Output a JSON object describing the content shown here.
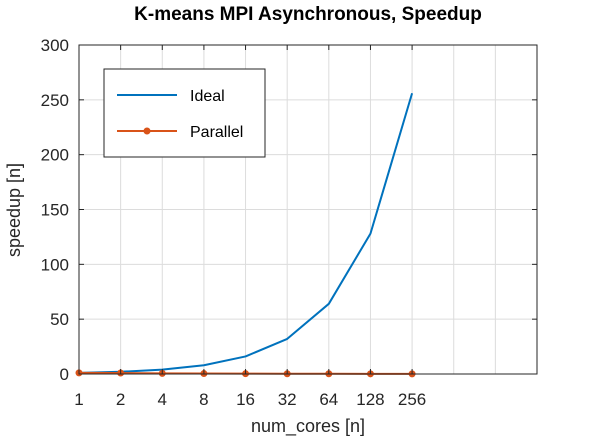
{
  "chart_data": {
    "type": "line",
    "title": "K-means MPI Asynchronous, Speedup",
    "xlabel": "num_cores [n]",
    "ylabel": "speedup [n]",
    "x": [
      "1",
      "2",
      "4",
      "8",
      "16",
      "32",
      "64",
      "128",
      "256"
    ],
    "x_axis_extra_slots": 2,
    "ylim": [
      0,
      300
    ],
    "yticks": [
      "0",
      "50",
      "100",
      "150",
      "200",
      "250",
      "300"
    ],
    "grid": true,
    "legend_position": "top-left",
    "series": [
      {
        "name": "Ideal",
        "color": "#0072BD",
        "marker": "none",
        "values": [
          1,
          2,
          4,
          8,
          16,
          32,
          64,
          128,
          256
        ]
      },
      {
        "name": "Parallel",
        "color": "#D95319",
        "marker": "dot",
        "values": [
          1,
          0.9,
          0.6,
          0.4,
          0.3,
          0.25,
          0.2,
          0.15,
          0.1
        ]
      }
    ]
  }
}
